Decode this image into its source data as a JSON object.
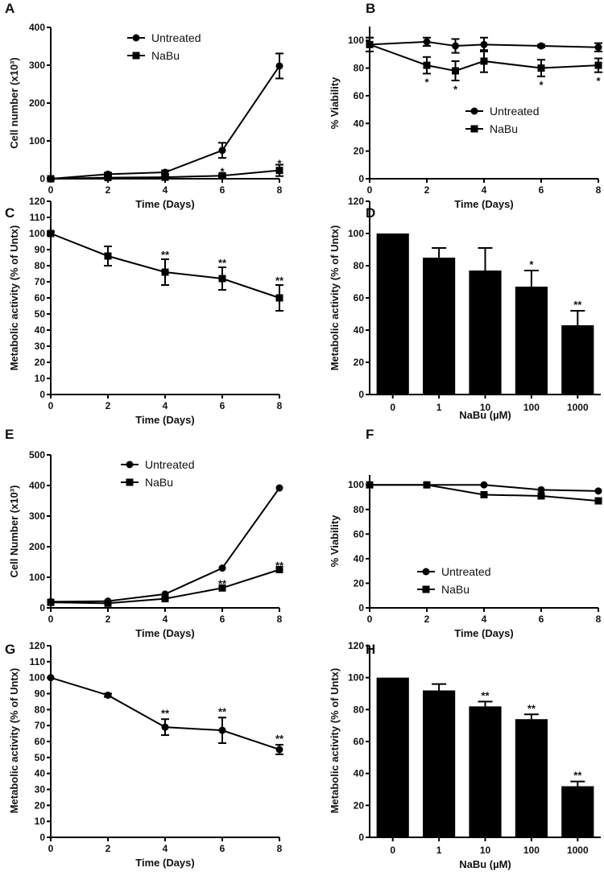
{
  "chart_data": [
    {
      "panel": "A",
      "type": "line",
      "title": "",
      "xlabel": "Time (Days)",
      "ylabel": "Cell number (x10³)",
      "xlim": [
        0,
        8
      ],
      "ylim": [
        0,
        400
      ],
      "xticks": [
        0,
        2,
        4,
        6,
        8
      ],
      "yticks": [
        0,
        100,
        200,
        300,
        400
      ],
      "legend": "top-center",
      "series": [
        {
          "name": "Untreated",
          "marker": "circle",
          "x": [
            0,
            2,
            4,
            6,
            8
          ],
          "y": [
            0,
            12,
            17,
            75,
            298
          ],
          "err": [
            2,
            4,
            5,
            20,
            33
          ]
        },
        {
          "name": "NaBu",
          "marker": "square",
          "x": [
            0,
            2,
            4,
            6,
            8
          ],
          "y": [
            0,
            3,
            4,
            8,
            22
          ],
          "err": [
            2,
            2,
            2,
            4,
            15
          ]
        }
      ],
      "annotations": [
        {
          "x": 6,
          "y": 20,
          "text": "*"
        },
        {
          "x": 8,
          "y": 42,
          "text": "*"
        }
      ]
    },
    {
      "panel": "B",
      "type": "line",
      "xlabel": "Time (Days)",
      "ylabel": "% Viability",
      "xlim": [
        0,
        8
      ],
      "ylim": [
        0,
        110
      ],
      "xticks": [
        0,
        2,
        4,
        6,
        8
      ],
      "yticks": [
        0,
        20,
        40,
        60,
        80,
        100
      ],
      "legend": "center",
      "series": [
        {
          "name": "Untreated",
          "marker": "circle",
          "x": [
            0,
            2,
            3,
            4,
            6,
            8
          ],
          "y": [
            97,
            99,
            96,
            97,
            96,
            95
          ],
          "err": [
            5,
            3,
            5,
            5,
            1,
            3
          ]
        },
        {
          "name": "NaBu",
          "marker": "square",
          "x": [
            0,
            2,
            3,
            4,
            6,
            8
          ],
          "y": [
            97,
            82,
            78,
            85,
            80,
            82
          ],
          "err": [
            5,
            6,
            7,
            8,
            6,
            5
          ]
        }
      ],
      "annotations": [
        {
          "x": 2,
          "y": 70,
          "text": "*"
        },
        {
          "x": 3,
          "y": 65,
          "text": "*"
        },
        {
          "x": 6,
          "y": 68,
          "text": "*"
        },
        {
          "x": 8,
          "y": 71,
          "text": "*"
        }
      ]
    },
    {
      "panel": "C",
      "type": "line",
      "xlabel": "Time (Days)",
      "ylabel": "Metabolic activity (% of Untx)",
      "xlim": [
        0,
        8
      ],
      "ylim": [
        0,
        120
      ],
      "xticks": [
        0,
        2,
        4,
        6,
        8
      ],
      "yticks": [
        0,
        10,
        20,
        30,
        40,
        50,
        60,
        70,
        80,
        90,
        100,
        110,
        120
      ],
      "series": [
        {
          "name": "",
          "marker": "square",
          "x": [
            0,
            2,
            4,
            6,
            8
          ],
          "y": [
            100,
            86,
            76,
            72,
            60
          ],
          "err": [
            1,
            6,
            8,
            7,
            8
          ]
        }
      ],
      "annotations": [
        {
          "x": 4,
          "y": 87,
          "text": "**"
        },
        {
          "x": 6,
          "y": 82,
          "text": "**"
        },
        {
          "x": 8,
          "y": 71,
          "text": "**"
        }
      ]
    },
    {
      "panel": "D",
      "type": "bar",
      "xlabel": "NaBu (µM)",
      "ylabel": "Metabolic activity (% of Untx)",
      "categories": [
        "0",
        "1",
        "10",
        "100",
        "1000"
      ],
      "values": [
        100,
        85,
        77,
        67,
        43
      ],
      "err": [
        0,
        6,
        14,
        10,
        9
      ],
      "ylim": [
        0,
        120
      ],
      "yticks": [
        0,
        20,
        40,
        60,
        80,
        100,
        120
      ],
      "annotations": [
        {
          "i": 3,
          "text": "*"
        },
        {
          "i": 4,
          "text": "**"
        }
      ]
    },
    {
      "panel": "E",
      "type": "line",
      "xlabel": "Time (Days)",
      "ylabel": "Cell Number (x10³)",
      "xlim": [
        0,
        8
      ],
      "ylim": [
        0,
        500
      ],
      "xticks": [
        0,
        2,
        4,
        6,
        8
      ],
      "yticks": [
        0,
        100,
        200,
        300,
        400,
        500
      ],
      "legend": "top-center",
      "series": [
        {
          "name": "Untreated",
          "marker": "circle",
          "x": [
            0,
            2,
            4,
            6,
            8
          ],
          "y": [
            20,
            22,
            45,
            130,
            392
          ],
          "err": [
            0,
            0,
            0,
            0,
            0
          ]
        },
        {
          "name": "NaBu",
          "marker": "square",
          "x": [
            0,
            2,
            4,
            6,
            8
          ],
          "y": [
            18,
            15,
            30,
            65,
            125
          ],
          "err": [
            0,
            0,
            0,
            0,
            0
          ]
        }
      ],
      "annotations": [
        {
          "x": 6,
          "y": 80,
          "text": "**"
        },
        {
          "x": 8,
          "y": 140,
          "text": "**"
        }
      ]
    },
    {
      "panel": "F",
      "type": "line",
      "xlabel": "Time (Days)",
      "ylabel": "% Viability",
      "xlim": [
        0,
        8
      ],
      "ylim": [
        0,
        108
      ],
      "xticks": [
        0,
        2,
        4,
        6,
        8
      ],
      "yticks": [
        0,
        20,
        40,
        60,
        80,
        100
      ],
      "legend": "center",
      "series": [
        {
          "name": "Untreated",
          "marker": "circle",
          "x": [
            0,
            2,
            4,
            6,
            8
          ],
          "y": [
            100,
            100,
            100,
            96,
            95
          ],
          "err": [
            0,
            0,
            0,
            0,
            0
          ]
        },
        {
          "name": "NaBu",
          "marker": "square",
          "x": [
            0,
            2,
            4,
            6,
            8
          ],
          "y": [
            100,
            100,
            92,
            91,
            87
          ],
          "err": [
            0,
            0,
            0,
            0,
            0
          ]
        }
      ],
      "annotations": []
    },
    {
      "panel": "G",
      "type": "line",
      "xlabel": "Time (Days)",
      "ylabel": "Metabolic activity (% of Untx)",
      "xlim": [
        0,
        8
      ],
      "ylim": [
        0,
        120
      ],
      "xticks": [
        0,
        2,
        4,
        6,
        8
      ],
      "yticks": [
        0,
        10,
        20,
        30,
        40,
        50,
        60,
        70,
        80,
        90,
        100,
        110,
        120
      ],
      "series": [
        {
          "name": "",
          "marker": "circle",
          "x": [
            0,
            2,
            4,
            6,
            8
          ],
          "y": [
            100,
            89,
            69,
            67,
            55
          ],
          "err": [
            0,
            1,
            5,
            8,
            3
          ]
        }
      ],
      "annotations": [
        {
          "x": 4,
          "y": 78,
          "text": "**"
        },
        {
          "x": 6,
          "y": 79,
          "text": "**"
        },
        {
          "x": 8,
          "y": 62,
          "text": "**"
        }
      ]
    },
    {
      "panel": "H",
      "type": "bar",
      "xlabel": "NaBu (µM)",
      "ylabel": "Metabolic activity (% of Untx)",
      "categories": [
        "0",
        "1",
        "10",
        "100",
        "1000"
      ],
      "values": [
        100,
        92,
        82,
        74,
        32
      ],
      "err": [
        0,
        4,
        3,
        3,
        3
      ],
      "ylim": [
        0,
        120
      ],
      "yticks": [
        0,
        20,
        40,
        60,
        80,
        100,
        120
      ],
      "annotations": [
        {
          "i": 2,
          "text": "**"
        },
        {
          "i": 3,
          "text": "**"
        },
        {
          "i": 4,
          "text": "**"
        }
      ]
    }
  ]
}
